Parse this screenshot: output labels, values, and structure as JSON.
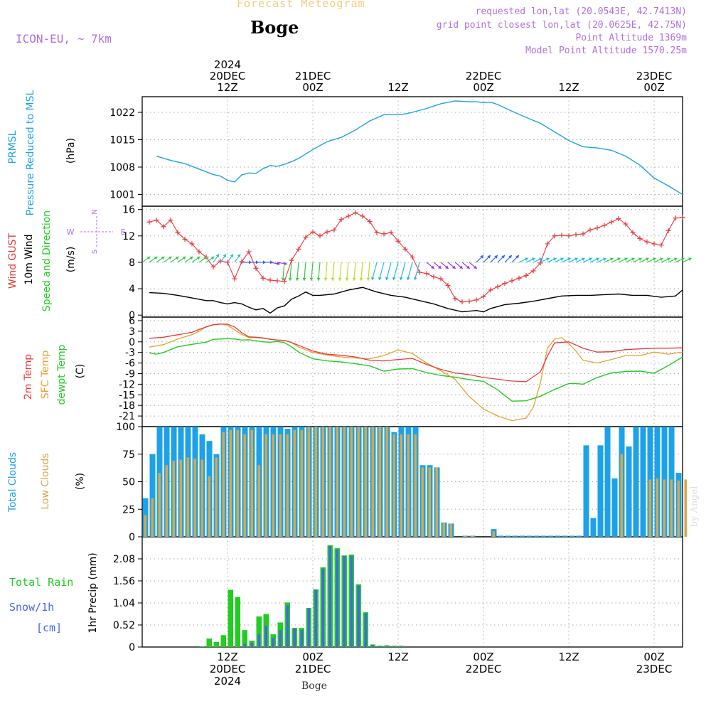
{
  "header": {
    "title_top": "Forecast Meteogram",
    "location": "Boge",
    "model": "ICON-EU, ~ 7km",
    "requested": "requested lon,lat (20.0543E, 42.7413N)",
    "grid_point": "grid point closest lon,lat (20.0625E, 42.75N)",
    "point_altitude": "Point Altitude 1369m",
    "model_altitude": "Model Point Altitude 1570.25m",
    "footer_location": "Boge",
    "watermark": "by Angel"
  },
  "colors": {
    "pressure": "#1da1e8",
    "gust": "#e8393c",
    "wind": "#000000",
    "temp2m": "#e8393c",
    "sfc": "#e8a030",
    "dewpt": "#22cc22",
    "total_cloud": "#1da1e8",
    "low_cloud": "#d8a848",
    "rain": "#22cc22",
    "snow": "#4466ee",
    "purple": "#b070e0"
  },
  "chart_data": [
    {
      "type": "line",
      "title": "",
      "ylabel_lines": [
        "PRMSL",
        "Pressure Reduced to MSL",
        "(hPa)"
      ],
      "ylim": [
        998,
        1026
      ],
      "yticks": [
        1001,
        1008,
        1015,
        1022
      ],
      "top_axis": {
        "ticks": [
          {
            "x": 12,
            "lines": [
              "2024",
              "20DEC",
              "12Z"
            ]
          },
          {
            "x": 24,
            "lines": [
              "21DEC",
              "00Z"
            ]
          },
          {
            "x": 36,
            "lines": [
              "12Z"
            ]
          },
          {
            "x": 48,
            "lines": [
              "22DEC",
              "00Z"
            ]
          },
          {
            "x": 60,
            "lines": [
              "12Z"
            ]
          },
          {
            "x": 72,
            "lines": [
              "23DEC",
              "00Z"
            ]
          }
        ]
      },
      "series": [
        {
          "name": "Pressure Reduced to MSL",
          "x": [
            2,
            4,
            6,
            8,
            10,
            11,
            12,
            13,
            14,
            15,
            16,
            17,
            18,
            19,
            20,
            21,
            22,
            24,
            26,
            28,
            30,
            32,
            34,
            36,
            37,
            38,
            40,
            42,
            44,
            46,
            47,
            48,
            49,
            50,
            52,
            54,
            56,
            58,
            60,
            62,
            64,
            66,
            68,
            70,
            72,
            74,
            76
          ],
          "y": [
            1010.8,
            1009.7,
            1008.9,
            1007.5,
            1006.1,
            1005.7,
            1004.6,
            1004.2,
            1006.0,
            1006.5,
            1006.4,
            1007.6,
            1008.4,
            1008.2,
            1008.7,
            1009.4,
            1010.2,
            1012.5,
            1014.5,
            1015.6,
            1017.5,
            1019.8,
            1021.4,
            1021.4,
            1021.6,
            1022.0,
            1023.0,
            1024.2,
            1024.9,
            1024.7,
            1024.7,
            1024.5,
            1024.6,
            1024.0,
            1022.3,
            1020.7,
            1019.2,
            1017.0,
            1014.8,
            1013.2,
            1012.9,
            1012.3,
            1010.8,
            1008.5,
            1005.2,
            1003.2,
            1001.0
          ]
        }
      ]
    },
    {
      "type": "line",
      "title": "",
      "ylabel_lines": [
        "Wind GUST",
        "10m Wind",
        "Speed and Direction",
        "(m/s)"
      ],
      "compass": {
        "n": "N",
        "s": "S",
        "w": "W",
        "e": "E"
      },
      "ylim": [
        -0.3,
        16.5
      ],
      "yticks": [
        0,
        4,
        8,
        12,
        16
      ],
      "series": [
        {
          "name": "Wind GUST",
          "x": [
            1,
            2,
            3,
            4,
            5,
            6,
            7,
            8,
            9,
            10,
            11,
            12,
            13,
            14,
            15,
            16,
            17,
            18,
            19,
            20,
            21,
            22,
            23,
            24,
            25,
            26,
            27,
            28,
            29,
            30,
            31,
            32,
            33,
            34,
            35,
            36,
            37,
            38,
            39,
            40,
            41,
            42,
            43,
            44,
            45,
            46,
            47,
            48,
            49,
            50,
            51,
            52,
            53,
            54,
            55,
            56,
            57,
            58,
            59,
            60,
            61,
            62,
            63,
            64,
            65,
            66,
            67,
            68,
            69,
            70,
            71,
            72,
            73,
            74,
            75,
            76
          ],
          "y": [
            14.1,
            14.4,
            13.4,
            14.4,
            12.5,
            11.5,
            10.8,
            9.6,
            8.8,
            7.3,
            8.2,
            8.0,
            5.5,
            8.1,
            9.6,
            7.1,
            5.6,
            5.3,
            5.2,
            5.1,
            8.3,
            10.0,
            11.8,
            12.6,
            12.0,
            12.6,
            12.9,
            14.5,
            15.0,
            15.5,
            15.0,
            14.2,
            12.5,
            12.3,
            12.5,
            11.2,
            10.0,
            8.8,
            6.5,
            6.3,
            5.8,
            5.5,
            4.5,
            2.5,
            2.0,
            2.1,
            2.3,
            2.8,
            3.8,
            4.3,
            4.8,
            5.2,
            5.6,
            6.0,
            6.7,
            7.9,
            10.8,
            12.0,
            12.1,
            12.0,
            12.2,
            12.3,
            12.9,
            13.2,
            13.6,
            14.1,
            14.6,
            13.8,
            12.5,
            11.6,
            11.1,
            10.8,
            10.6,
            12.8,
            14.7,
            14.8
          ]
        },
        {
          "name": "10m Wind",
          "x": [
            1,
            3,
            5,
            7,
            9,
            10,
            11,
            12,
            13,
            14,
            15,
            16,
            17,
            18,
            19,
            20,
            21,
            22,
            23,
            24,
            25,
            27,
            29,
            31,
            33,
            35,
            37,
            39,
            41,
            43,
            45,
            47,
            48,
            49,
            51,
            53,
            55,
            57,
            59,
            61,
            63,
            65,
            67,
            69,
            71,
            73,
            75,
            76
          ],
          "y": [
            3.4,
            3.3,
            3.0,
            2.6,
            2.2,
            2.2,
            1.9,
            1.7,
            1.9,
            1.7,
            1.2,
            0.8,
            1.0,
            0.3,
            1.1,
            1.4,
            2.4,
            2.9,
            3.5,
            3.0,
            3.0,
            3.2,
            3.8,
            4.2,
            3.5,
            3.0,
            2.7,
            2.2,
            1.7,
            1.0,
            0.5,
            0.7,
            0.5,
            1.0,
            1.6,
            1.8,
            2.1,
            2.5,
            2.9,
            3.0,
            3.0,
            3.1,
            3.2,
            3.0,
            3.0,
            2.7,
            2.9,
            3.8
          ]
        }
      ]
    },
    {
      "type": "line",
      "title": "",
      "ylabel_lines": [
        "2m Temp",
        "SFC Temp",
        "dewpt Temp",
        "(C)"
      ],
      "ylim": [
        -24,
        7
      ],
      "yticks": [
        6,
        3,
        0,
        -3,
        -6,
        -9,
        -12,
        -15,
        -18,
        -21
      ],
      "series": [
        {
          "name": "2m Temp",
          "x": [
            1,
            3,
            5,
            7,
            8,
            9,
            10,
            11,
            12,
            13,
            14,
            15,
            16,
            17,
            18,
            19,
            20,
            21,
            22,
            24,
            26,
            28,
            30,
            32,
            34,
            36,
            38,
            40,
            42,
            44,
            46,
            48,
            50,
            52,
            54,
            56,
            57,
            58,
            60,
            62,
            64,
            66,
            68,
            70,
            72,
            74,
            76
          ],
          "y": [
            1.0,
            1.3,
            2.0,
            2.7,
            3.5,
            4.2,
            4.8,
            5.0,
            5.0,
            4.2,
            2.6,
            1.4,
            1.3,
            1.1,
            0.7,
            0.5,
            0.4,
            -0.2,
            -1.0,
            -2.6,
            -3.5,
            -3.8,
            -4.3,
            -5.2,
            -5.4,
            -5.0,
            -4.7,
            -6.4,
            -7.8,
            -8.8,
            -9.3,
            -10.1,
            -10.6,
            -11.1,
            -11.3,
            -8.5,
            -4.0,
            -0.3,
            0.0,
            -1.8,
            -2.9,
            -2.8,
            -2.2,
            -2.0,
            -1.8,
            -1.8,
            -1.7
          ]
        },
        {
          "name": "SFC Temp",
          "x": [
            1,
            3,
            5,
            7,
            8,
            9,
            10,
            11,
            12,
            13,
            14,
            15,
            16,
            17,
            18,
            19,
            20,
            21,
            22,
            24,
            26,
            28,
            30,
            32,
            34,
            36,
            38,
            40,
            42,
            44,
            46,
            48,
            50,
            52,
            54,
            55,
            56,
            57,
            58,
            59,
            60,
            61,
            62,
            64,
            66,
            68,
            70,
            72,
            74,
            76
          ],
          "y": [
            -1.5,
            -0.8,
            0.8,
            2.0,
            3.0,
            4.3,
            4.9,
            5.1,
            4.7,
            3.4,
            2.1,
            1.2,
            1.2,
            1.0,
            0.8,
            0.5,
            0.4,
            -0.2,
            -1.5,
            -3.0,
            -3.7,
            -4.3,
            -4.6,
            -4.8,
            -3.9,
            -2.3,
            -3.3,
            -6.0,
            -8.2,
            -10.6,
            -15.5,
            -19.0,
            -21.0,
            -22.3,
            -21.6,
            -18.6,
            -11.7,
            -1.8,
            0.8,
            1.2,
            -0.5,
            -2.6,
            -5.2,
            -6.0,
            -5.0,
            -3.9,
            -3.9,
            -2.9,
            -3.5,
            -2.9
          ]
        },
        {
          "name": "dewpt Temp",
          "x": [
            1,
            2,
            3,
            5,
            7,
            9,
            10,
            11,
            12,
            13,
            14,
            15,
            16,
            17,
            18,
            19,
            20,
            21,
            22,
            24,
            26,
            28,
            30,
            32,
            34,
            36,
            38,
            40,
            42,
            44,
            46,
            48,
            50,
            52,
            54,
            56,
            58,
            60,
            61,
            62,
            64,
            66,
            68,
            70,
            72,
            74,
            76
          ],
          "y": [
            -3.1,
            -3.5,
            -3.0,
            -1.4,
            -0.7,
            -0.1,
            0.7,
            0.8,
            0.9,
            0.8,
            0.5,
            0.6,
            0.3,
            0.0,
            -0.1,
            0.1,
            -0.2,
            -1.4,
            -2.9,
            -4.8,
            -5.4,
            -5.7,
            -6.2,
            -6.8,
            -8.3,
            -7.7,
            -7.6,
            -8.7,
            -9.5,
            -10.0,
            -10.7,
            -11.2,
            -13.6,
            -16.8,
            -16.7,
            -15.4,
            -13.5,
            -11.8,
            -11.8,
            -12.0,
            -10.1,
            -8.8,
            -8.4,
            -8.3,
            -8.9,
            -6.7,
            -4.3
          ]
        }
      ]
    },
    {
      "type": "bar",
      "title": "",
      "ylabel_lines": [
        "Total Clouds",
        "Low Clouds",
        "(%)"
      ],
      "ylim": [
        0,
        100
      ],
      "yticks": [
        0,
        25,
        50,
        75,
        100
      ],
      "x_start": 0,
      "x_step": 1,
      "series": [
        {
          "name": "Total Clouds",
          "values": [
            35,
            75,
            100,
            100,
            100,
            100,
            100,
            100,
            93,
            87,
            75,
            100,
            100,
            100,
            100,
            100,
            100,
            100,
            100,
            100,
            98,
            100,
            100,
            100,
            100,
            100,
            100,
            100,
            100,
            100,
            100,
            100,
            100,
            100,
            100,
            95,
            100,
            100,
            100,
            65,
            65,
            63,
            13,
            12,
            0,
            1,
            1,
            0,
            0,
            7,
            1,
            1,
            1,
            1,
            1,
            1,
            1,
            1,
            1,
            1,
            1,
            1,
            83,
            17,
            83,
            100,
            53,
            100,
            82,
            100,
            100,
            100,
            100,
            100,
            100,
            58
          ]
        },
        {
          "name": "Low Clouds",
          "values": [
            20,
            35,
            58,
            65,
            69,
            70,
            72,
            71,
            70,
            55,
            72,
            95,
            97,
            97,
            93,
            97,
            65,
            93,
            93,
            93,
            93,
            97,
            97,
            100,
            100,
            100,
            100,
            100,
            100,
            100,
            100,
            100,
            100,
            100,
            100,
            93,
            93,
            93,
            93,
            63,
            63,
            63,
            13,
            12,
            0,
            1,
            1,
            0,
            0,
            5,
            0,
            0,
            0,
            0,
            0,
            0,
            0,
            0,
            0,
            0,
            0,
            0,
            0,
            0,
            0,
            0,
            0,
            75,
            0,
            0,
            0,
            52,
            53,
            52,
            52,
            51,
            52
          ]
        }
      ]
    },
    {
      "type": "bar",
      "title": "",
      "ylabel_lines": [
        "1hr Precip (mm)"
      ],
      "side_labels": {
        "rain": "Total  Rain",
        "snow": "Snow/1h",
        "cm": "[cm]"
      },
      "ylim": [
        0,
        2.6
      ],
      "yticks": [
        0,
        0.52,
        1.04,
        1.56,
        2.08
      ],
      "ytick_labels": [
        "0",
        "0.52",
        "1.04",
        "1.56",
        "2.08"
      ],
      "bottom_axis": {
        "ticks": [
          {
            "x": 12,
            "lines": [
              "12Z",
              "20DEC",
              "2024"
            ]
          },
          {
            "x": 24,
            "lines": [
              "00Z",
              "21DEC"
            ]
          },
          {
            "x": 36,
            "lines": [
              "12Z"
            ]
          },
          {
            "x": 48,
            "lines": [
              "00Z",
              "22DEC"
            ]
          },
          {
            "x": 60,
            "lines": [
              "12Z"
            ]
          },
          {
            "x": 72,
            "lines": [
              "00Z",
              "23DEC"
            ]
          }
        ]
      },
      "x_start": 8,
      "x_step": 1,
      "series": [
        {
          "name": "Total Rain",
          "values": [
            0.02,
            0.2,
            0.12,
            0.28,
            1.35,
            1.18,
            0.4,
            0.15,
            0.72,
            0.78,
            0.3,
            0.58,
            1.05,
            0.45,
            0.45,
            0.92,
            1.36,
            1.88,
            2.4,
            2.33,
            2.16,
            2.18,
            1.48,
            0.82,
            0.06,
            0.03,
            0.04,
            0.03,
            0.03
          ]
        },
        {
          "name": "Snow/1h",
          "values": [
            0,
            0,
            0,
            0,
            0,
            0,
            0.08,
            0.1,
            0.3,
            0.5,
            0.22,
            0.4,
            0.98,
            0.45,
            0.4,
            0.92,
            1.35,
            1.85,
            2.38,
            2.3,
            2.15,
            2.15,
            1.45,
            0.8,
            0.05,
            0.02,
            0.03,
            0.02,
            0.02
          ]
        }
      ]
    }
  ]
}
